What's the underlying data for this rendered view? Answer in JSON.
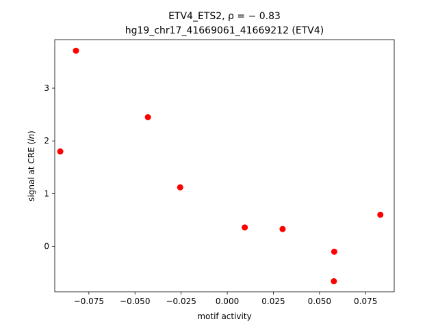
{
  "chart_data": {
    "type": "scatter",
    "title_line1": "ETV4_ETS2, ρ = − 0.83",
    "title_line2": "hg19_chr17_41669061_41669212 (ETV4)",
    "xlabel": "motif activity",
    "ylabel": "signal at CRE (ln)",
    "xlim": [
      -0.0935,
      0.0905
    ],
    "ylim": [
      -0.86,
      3.92
    ],
    "x_ticks": [
      -0.075,
      -0.05,
      -0.025,
      0.0,
      0.025,
      0.05,
      0.075
    ],
    "x_tick_labels": [
      "−0.075",
      "−0.050",
      "−0.025",
      "0.000",
      "0.025",
      "0.050",
      "0.075"
    ],
    "y_ticks": [
      0,
      1,
      2,
      3
    ],
    "y_tick_labels": [
      "0",
      "1",
      "2",
      "3"
    ],
    "grid": false,
    "marker_color": "#ff0000",
    "points": [
      {
        "x": -0.0905,
        "y": 1.8
      },
      {
        "x": -0.082,
        "y": 3.71
      },
      {
        "x": -0.043,
        "y": 2.45
      },
      {
        "x": -0.0255,
        "y": 1.12
      },
      {
        "x": 0.0095,
        "y": 0.36
      },
      {
        "x": 0.03,
        "y": 0.33
      },
      {
        "x": 0.058,
        "y": -0.1
      },
      {
        "x": 0.0578,
        "y": -0.66
      },
      {
        "x": 0.083,
        "y": 0.6
      }
    ]
  }
}
